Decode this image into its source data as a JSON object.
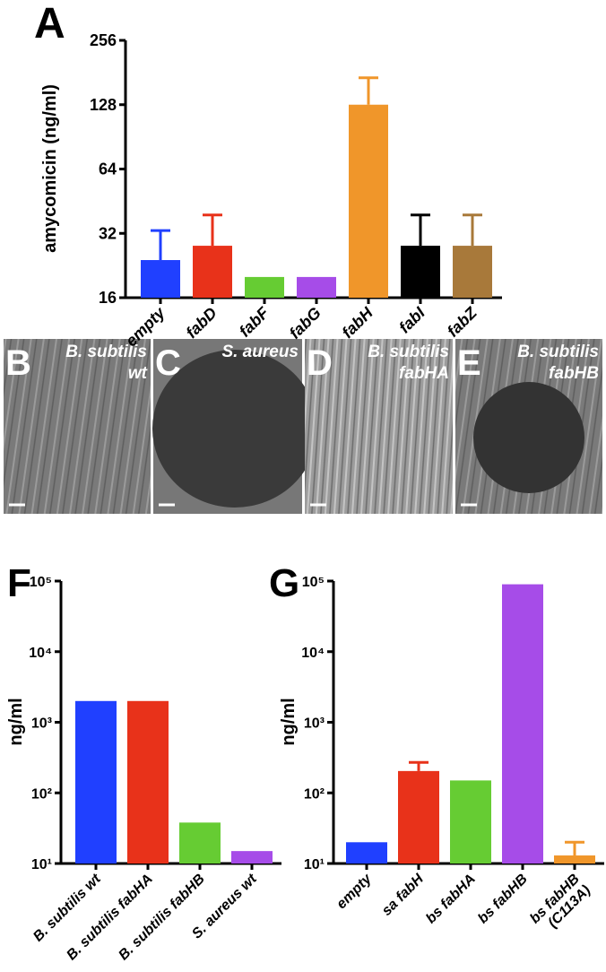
{
  "chart_data": [
    {
      "type": "bar",
      "label": "A",
      "y_label": "amycomicin (ng/ml)",
      "log_base": 2,
      "categories": [
        "empty",
        "fabD",
        "fabF",
        "fabG",
        "fabH",
        "fabI",
        "fabZ"
      ],
      "values": [
        24,
        28,
        20,
        20,
        128,
        28,
        28
      ],
      "errors": [
        9,
        11,
        null,
        null,
        43,
        11,
        11
      ],
      "colors": [
        "#2040ff",
        "#e8321a",
        "#66cc33",
        "#a64ce8",
        "#f0962a",
        "#000000",
        "#a8793a"
      ],
      "ylim": [
        16,
        256
      ],
      "yticks": [
        16,
        32,
        64,
        128,
        256
      ]
    },
    {
      "type": "bar",
      "label": "F",
      "y_label": "ng/ml",
      "log_base": 10,
      "categories": [
        "B. subtilis wt",
        "B. subtilis fabHA",
        "B. subtilis fabHB",
        "S. aureus wt"
      ],
      "values": [
        2000,
        2000,
        38,
        15
      ],
      "errors": [
        null,
        null,
        null,
        null
      ],
      "colors": [
        "#2040ff",
        "#e8321a",
        "#66cc33",
        "#a64ce8"
      ],
      "ylim": [
        10,
        100000
      ],
      "yticks": [
        {
          "value": 10,
          "label": "10¹"
        },
        {
          "value": 100,
          "label": "10²"
        },
        {
          "value": 1000,
          "label": "10³"
        },
        {
          "value": 10000,
          "label": "10⁴"
        },
        {
          "value": 100000,
          "label": "10⁵"
        }
      ]
    },
    {
      "type": "bar",
      "label": "G",
      "y_label": "ng/ml",
      "log_base": 10,
      "categories": [
        "empty",
        "sa fabH",
        "bs fabHA",
        "bs fabHB",
        "bs fabHB\n(C113A)"
      ],
      "values": [
        20,
        204,
        150,
        90000,
        13
      ],
      "errors": [
        null,
        66,
        null,
        null,
        7
      ],
      "colors": [
        "#2040ff",
        "#e8321a",
        "#66cc33",
        "#a64ce8",
        "#f0962a"
      ],
      "ylim": [
        10,
        100000
      ],
      "yticks": [
        {
          "value": 10,
          "label": "10¹"
        },
        {
          "value": 100,
          "label": "10²"
        },
        {
          "value": 1000,
          "label": "10³"
        },
        {
          "value": 10000,
          "label": "10⁴"
        },
        {
          "value": 100000,
          "label": "10⁵"
        }
      ]
    }
  ],
  "image_panels": [
    {
      "letter": "B",
      "caption": [
        "B. subtilis",
        "wt"
      ]
    },
    {
      "letter": "C",
      "caption": [
        "S. aureus"
      ]
    },
    {
      "letter": "D",
      "caption": [
        "B. subtilis",
        "fabHA"
      ]
    },
    {
      "letter": "E",
      "caption": [
        "B. subtilis",
        "fabHB"
      ]
    }
  ]
}
